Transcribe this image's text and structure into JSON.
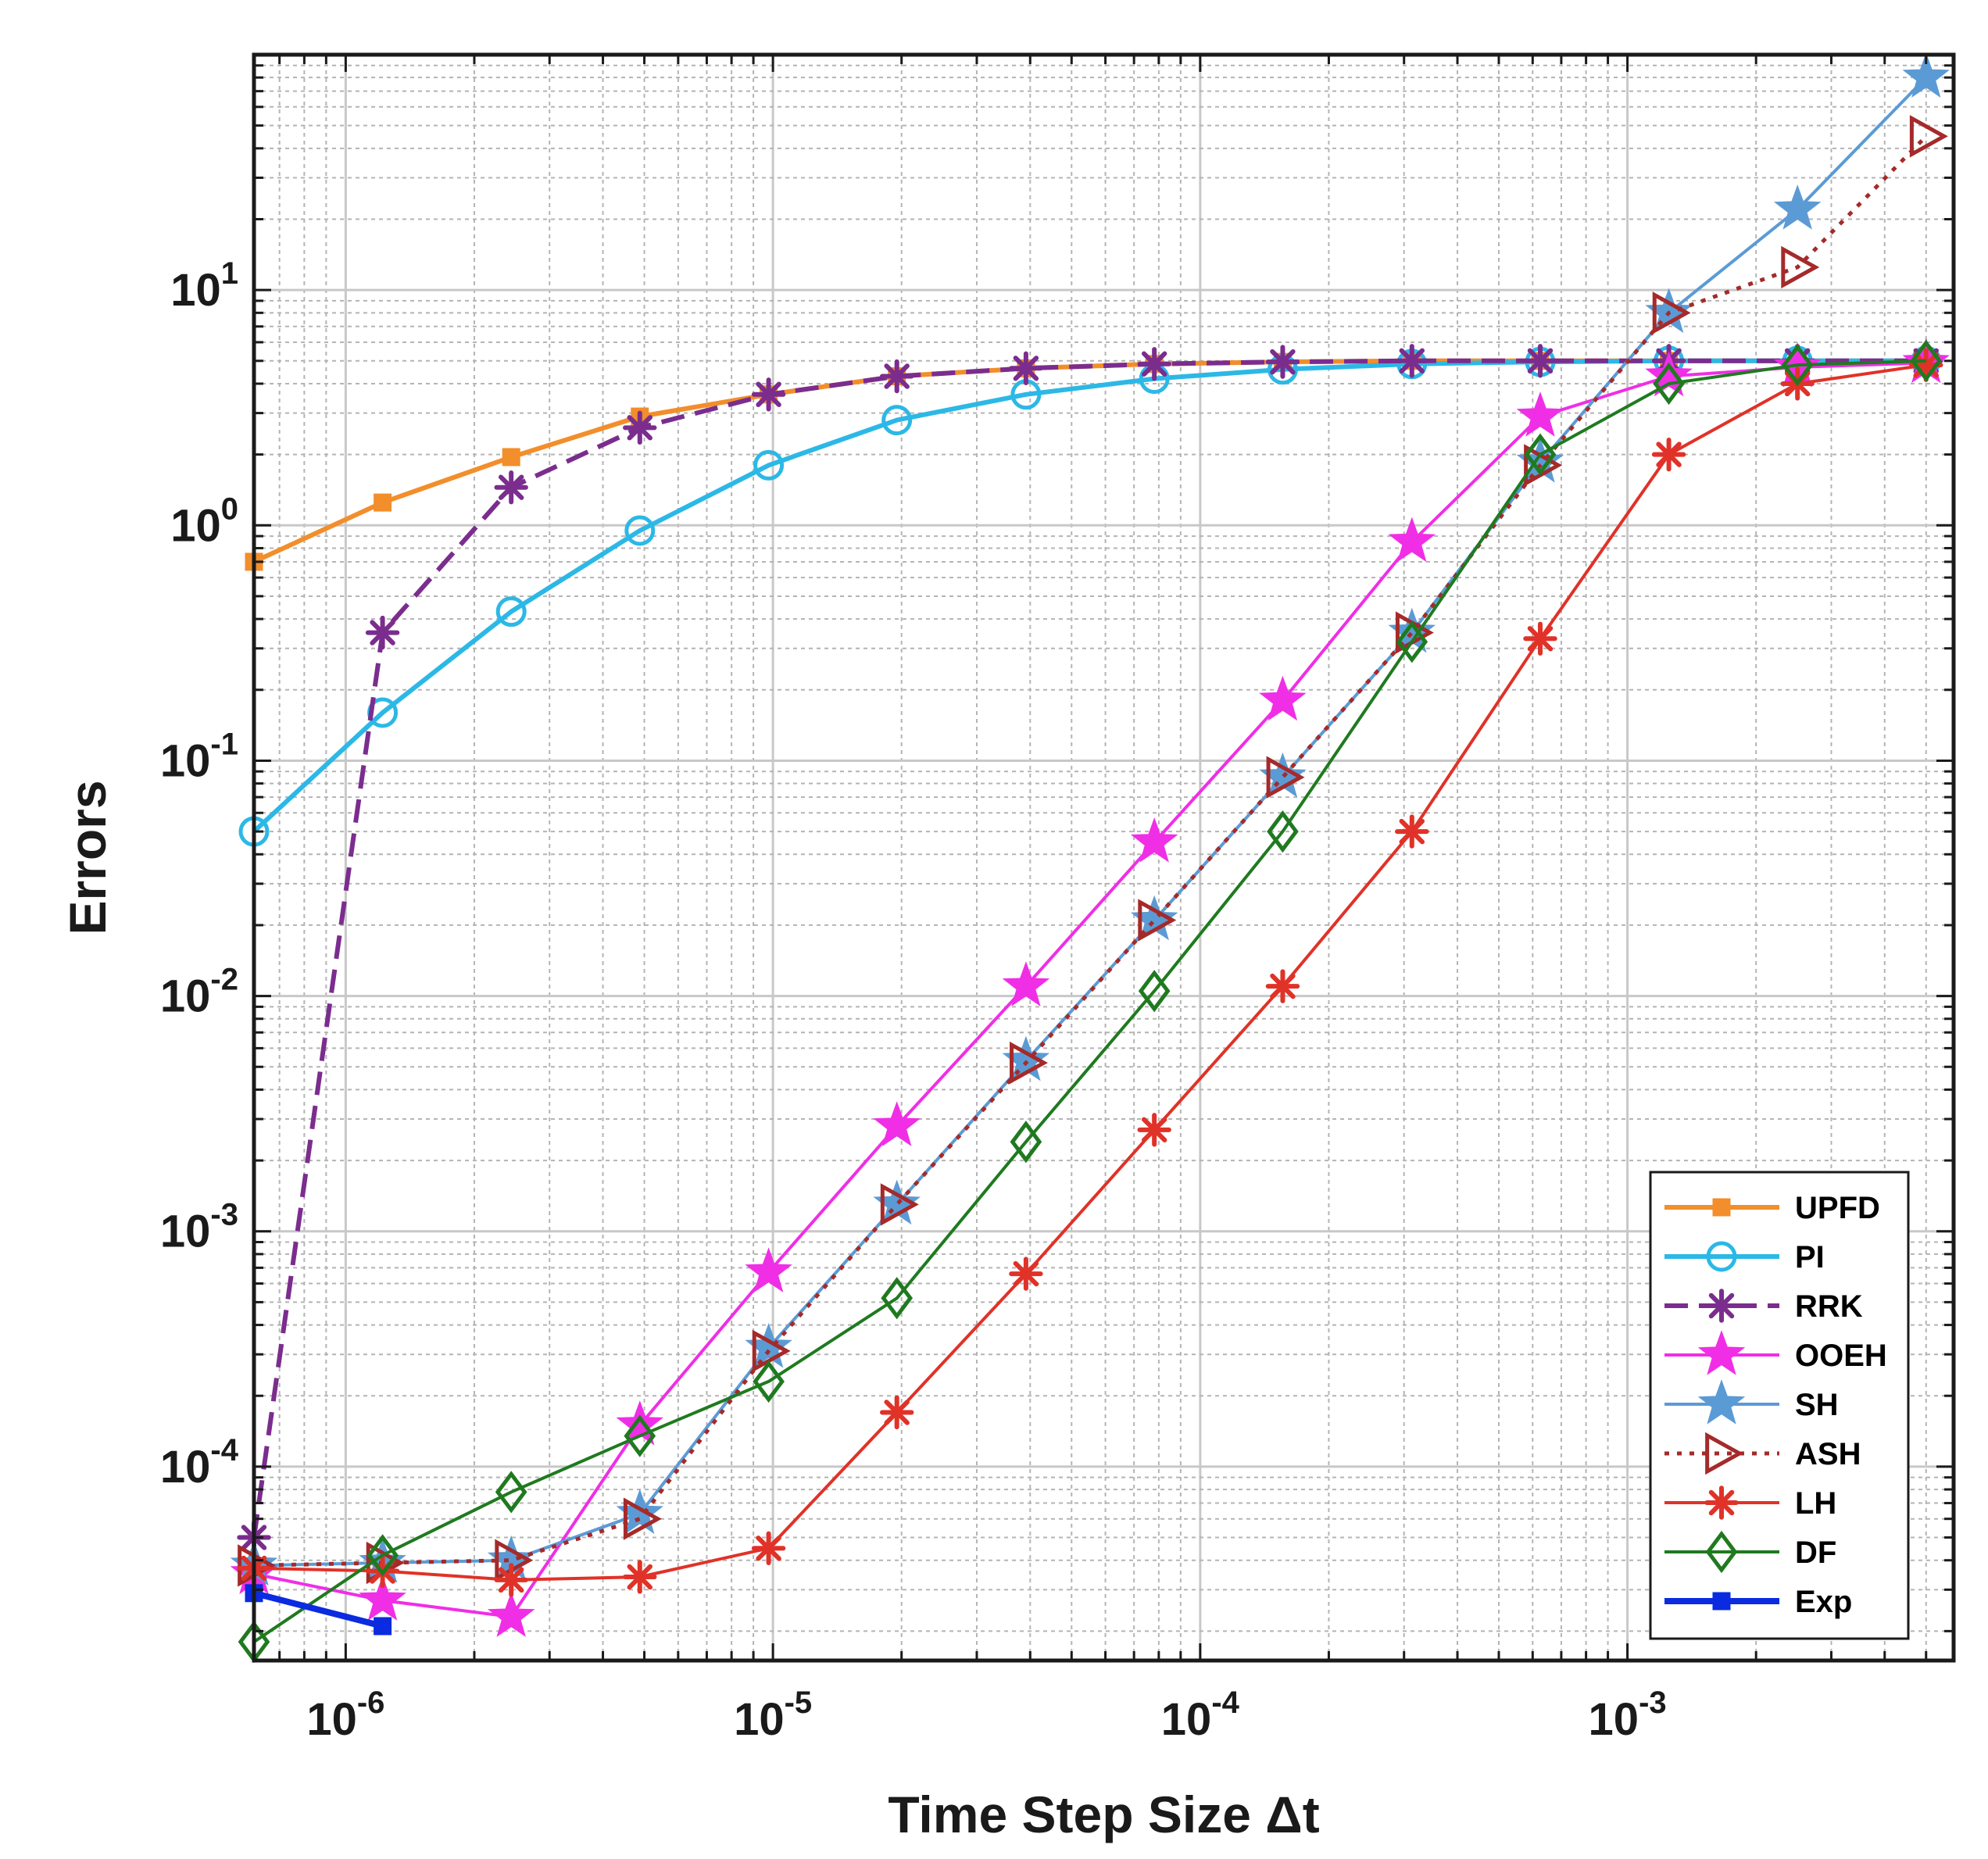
{
  "chart_data": {
    "type": "line",
    "title": "",
    "xlabel": "Time Step Size Δt",
    "ylabel": "Errors",
    "xscale": "log",
    "yscale": "log",
    "xlim": [
      6.1e-07,
      0.0058
    ],
    "ylim": [
      1.5e-05,
      100
    ],
    "x_ticks": [
      {
        "value": 1e-06,
        "base": "10",
        "exp": "-6"
      },
      {
        "value": 1e-05,
        "base": "10",
        "exp": "-5"
      },
      {
        "value": 0.0001,
        "base": "10",
        "exp": "-4"
      },
      {
        "value": 0.001,
        "base": "10",
        "exp": "-3"
      }
    ],
    "y_ticks": [
      {
        "value": 0.0001,
        "base": "10",
        "exp": "-4"
      },
      {
        "value": 0.001,
        "base": "10",
        "exp": "-3"
      },
      {
        "value": 0.01,
        "base": "10",
        "exp": "-2"
      },
      {
        "value": 0.1,
        "base": "10",
        "exp": "-1"
      },
      {
        "value": 1,
        "base": "10",
        "exp": "0"
      },
      {
        "value": 10,
        "base": "10",
        "exp": "1"
      }
    ],
    "grid": true,
    "minor_grid": true,
    "legend_position": "bottom-right",
    "series": [
      {
        "name": "UPFD",
        "color": "#f28e2b",
        "marker": "square",
        "dash": "solid",
        "width": 6,
        "x": [
          6.1e-07,
          1.22e-06,
          2.44e-06,
          4.88e-06,
          9.77e-06,
          1.95e-05,
          3.91e-05,
          7.81e-05,
          0.000156,
          0.000313,
          0.000625,
          0.00125,
          0.0025,
          0.005
        ],
        "y": [
          0.7,
          1.25,
          1.95,
          2.9,
          3.6,
          4.3,
          4.65,
          4.85,
          4.95,
          5.0,
          5.0,
          5.0,
          5.0,
          5.0
        ]
      },
      {
        "name": "PI",
        "color": "#2cb8e6",
        "marker": "circle",
        "dash": "solid",
        "width": 6,
        "x": [
          6.1e-07,
          1.22e-06,
          2.44e-06,
          4.88e-06,
          9.77e-06,
          1.95e-05,
          3.91e-05,
          7.81e-05,
          0.000156,
          0.000313,
          0.000625,
          0.00125,
          0.0025,
          0.005
        ],
        "y": [
          0.05,
          0.16,
          0.43,
          0.95,
          1.8,
          2.8,
          3.6,
          4.2,
          4.6,
          4.85,
          4.95,
          5.0,
          5.0,
          5.0
        ]
      },
      {
        "name": "RRK",
        "color": "#7b2d8e",
        "marker": "asterisk",
        "dash": "dashed",
        "width": 6,
        "x": [
          6.1e-07,
          1.22e-06,
          2.44e-06,
          4.88e-06,
          9.77e-06,
          1.95e-05,
          3.91e-05,
          7.81e-05,
          0.000156,
          0.000313,
          0.000625,
          0.00125,
          0.0025,
          0.005
        ],
        "y": [
          5e-05,
          0.35,
          1.45,
          2.6,
          3.6,
          4.3,
          4.65,
          4.85,
          4.95,
          5.0,
          5.0,
          5.0,
          5.0,
          5.0
        ]
      },
      {
        "name": "OOEH",
        "color": "#f02ee6",
        "marker": "star",
        "dash": "solid",
        "width": 4,
        "x": [
          6.1e-07,
          1.22e-06,
          2.44e-06,
          4.88e-06,
          9.77e-06,
          1.95e-05,
          3.91e-05,
          7.81e-05,
          0.000156,
          0.000313,
          0.000625,
          0.00125,
          0.0025,
          0.005
        ],
        "y": [
          3.5e-05,
          2.7e-05,
          2.3e-05,
          0.00015,
          0.00067,
          0.0028,
          0.011,
          0.045,
          0.18,
          0.85,
          2.9,
          4.3,
          4.7,
          4.9
        ]
      },
      {
        "name": "SH",
        "color": "#5b9bd5",
        "marker": "star",
        "dash": "solid",
        "width": 4,
        "x": [
          6.1e-07,
          1.22e-06,
          2.44e-06,
          4.88e-06,
          9.77e-06,
          1.95e-05,
          3.91e-05,
          7.81e-05,
          0.000156,
          0.000313,
          0.000625,
          0.00125,
          0.0025,
          0.005
        ],
        "y": [
          3.8e-05,
          3.9e-05,
          4e-05,
          6.3e-05,
          0.00032,
          0.0013,
          0.0053,
          0.021,
          0.085,
          0.35,
          1.85,
          8.0,
          22.0,
          80.0
        ]
      },
      {
        "name": "ASH",
        "color": "#a52a2a",
        "marker": "triangle-right",
        "dash": "dotted",
        "width": 5,
        "x": [
          6.1e-07,
          1.22e-06,
          2.44e-06,
          4.88e-06,
          9.77e-06,
          1.95e-05,
          3.91e-05,
          7.81e-05,
          0.000156,
          0.000313,
          0.000625,
          0.00125,
          0.0025,
          0.005
        ],
        "y": [
          3.8e-05,
          3.9e-05,
          4e-05,
          6e-05,
          0.00031,
          0.0013,
          0.0052,
          0.021,
          0.085,
          0.35,
          1.8,
          8.0,
          12.5,
          45.0
        ]
      },
      {
        "name": "LH",
        "color": "#e03228",
        "marker": "asterisk",
        "dash": "solid",
        "width": 4,
        "x": [
          6.1e-07,
          1.22e-06,
          2.44e-06,
          4.88e-06,
          9.77e-06,
          1.95e-05,
          3.91e-05,
          7.81e-05,
          0.000156,
          0.000313,
          0.000625,
          0.00125,
          0.0025,
          0.005
        ],
        "y": [
          3.7e-05,
          3.6e-05,
          3.3e-05,
          3.4e-05,
          4.5e-05,
          0.00017,
          0.00066,
          0.0027,
          0.011,
          0.05,
          0.33,
          2.0,
          4.0,
          4.8
        ]
      },
      {
        "name": "DF",
        "color": "#1f7a1f",
        "marker": "diamond",
        "dash": "solid",
        "width": 4,
        "x": [
          6.1e-07,
          1.22e-06,
          2.44e-06,
          4.88e-06,
          9.77e-06,
          1.95e-05,
          3.91e-05,
          7.81e-05,
          0.000156,
          0.000313,
          0.000625,
          0.00125,
          0.0025,
          0.005
        ],
        "y": [
          1.8e-05,
          4.2e-05,
          7.8e-05,
          0.000135,
          0.00023,
          0.00052,
          0.0024,
          0.0105,
          0.05,
          0.32,
          2.0,
          4.0,
          4.8,
          5.0
        ]
      },
      {
        "name": "Exp",
        "color": "#0a2be0",
        "marker": "square",
        "dash": "solid",
        "width": 8,
        "x": [
          6.1e-07,
          1.22e-06
        ],
        "y": [
          2.9e-05,
          2.1e-05
        ]
      }
    ]
  }
}
